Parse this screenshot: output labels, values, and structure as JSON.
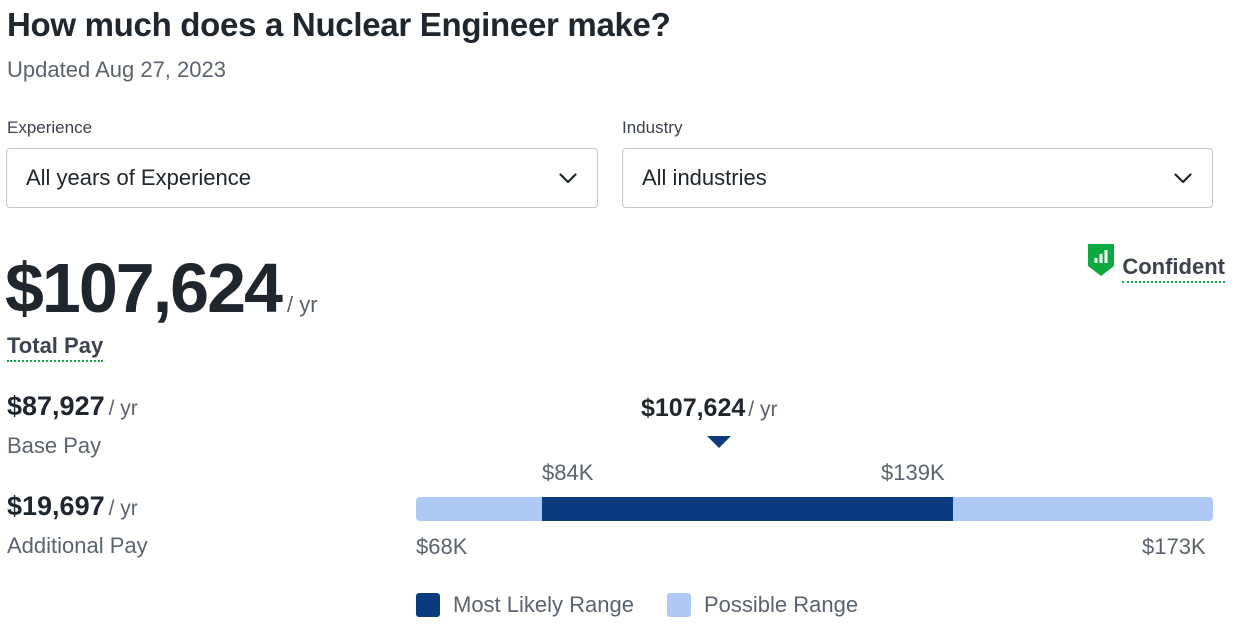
{
  "header": {
    "title": "How much does a Nuclear Engineer make?",
    "updated": "Updated Aug 27, 2023"
  },
  "filters": {
    "experience": {
      "label": "Experience",
      "value": "All years of Experience"
    },
    "industry": {
      "label": "Industry",
      "value": "All industries"
    }
  },
  "pay": {
    "total": "$107,624",
    "per_year": "/ yr",
    "total_label": "Total Pay",
    "confidence": "Confident",
    "base": {
      "amount": "$87,927",
      "per": "/ yr",
      "label": "Base Pay"
    },
    "additional": {
      "amount": "$19,697",
      "per": "/ yr",
      "label": "Additional Pay"
    }
  },
  "range": {
    "median": "$107,624",
    "median_per": "/ yr",
    "likely_low": "$84K",
    "likely_high": "$139K",
    "possible_low": "$68K",
    "possible_high": "$173K",
    "median_value": 107624,
    "likely_low_value": 84000,
    "likely_high_value": 139000,
    "possible_low_value": 68000,
    "possible_high_value": 173000
  },
  "legend": {
    "most_likely": "Most Likely Range",
    "possible": "Possible Range"
  },
  "colors": {
    "most_likely": "#0d3b80",
    "possible": "#adcaf5",
    "confident_green": "#0caa41"
  },
  "icons": {
    "dropdown": "chevron-down-icon",
    "confidence": "confidence-shield-icon"
  }
}
